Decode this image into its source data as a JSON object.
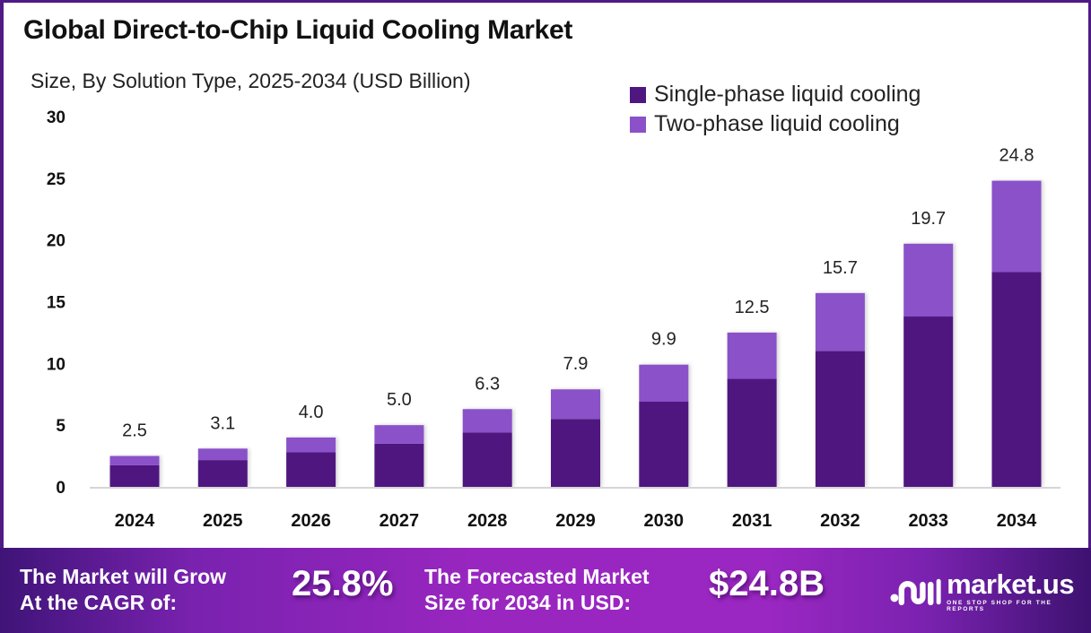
{
  "header": {
    "title": "Global Direct-to-Chip Liquid Cooling Market",
    "subtitle": "Size, By Solution Type, 2025-2034 (USD Billion)"
  },
  "colors": {
    "single_phase": "#4f1780",
    "two_phase": "#8a51c9",
    "frame": "#4f1a85"
  },
  "chart_data": {
    "type": "bar",
    "stacked": true,
    "title": "Global Direct-to-Chip Liquid Cooling Market",
    "subtitle": "Size, By Solution Type, 2025-2034 (USD Billion)",
    "xlabel": "",
    "ylabel": "",
    "ylim": [
      0,
      30
    ],
    "yticks": [
      0,
      5,
      10,
      15,
      20,
      25,
      30
    ],
    "grid": false,
    "legend_position": "top-right",
    "categories": [
      "2024",
      "2025",
      "2026",
      "2027",
      "2028",
      "2029",
      "2030",
      "2031",
      "2032",
      "2033",
      "2034"
    ],
    "series": [
      {
        "name": "Single-phase liquid cooling",
        "values": [
          1.75,
          2.17,
          2.8,
          3.5,
          4.4,
          5.5,
          6.9,
          8.75,
          11.0,
          13.8,
          17.4
        ]
      },
      {
        "name": "Two-phase liquid cooling",
        "values": [
          0.75,
          0.93,
          1.2,
          1.5,
          1.9,
          2.4,
          3.0,
          3.75,
          4.7,
          5.9,
          7.4
        ]
      }
    ],
    "totals": [
      2.5,
      3.1,
      4.0,
      5.0,
      6.3,
      7.9,
      9.9,
      12.5,
      15.7,
      19.7,
      24.8
    ],
    "data_labels": [
      "2.5",
      "3.1",
      "4.0",
      "5.0",
      "6.3",
      "7.9",
      "9.9",
      "12.5",
      "15.7",
      "19.7",
      "24.8"
    ]
  },
  "footer": {
    "cagr_label_line1": "The Market will Grow",
    "cagr_label_line2": "At the CAGR of:",
    "cagr_value": "25.8%",
    "forecast_label_line1": "The Forecasted Market",
    "forecast_label_line2": "Size for 2034 in USD:",
    "forecast_value": "$24.8B",
    "brand_name": "market.us",
    "brand_tagline": "ONE STOP SHOP FOR THE REPORTS",
    "brand_icon": "market-us-logo-icon"
  }
}
